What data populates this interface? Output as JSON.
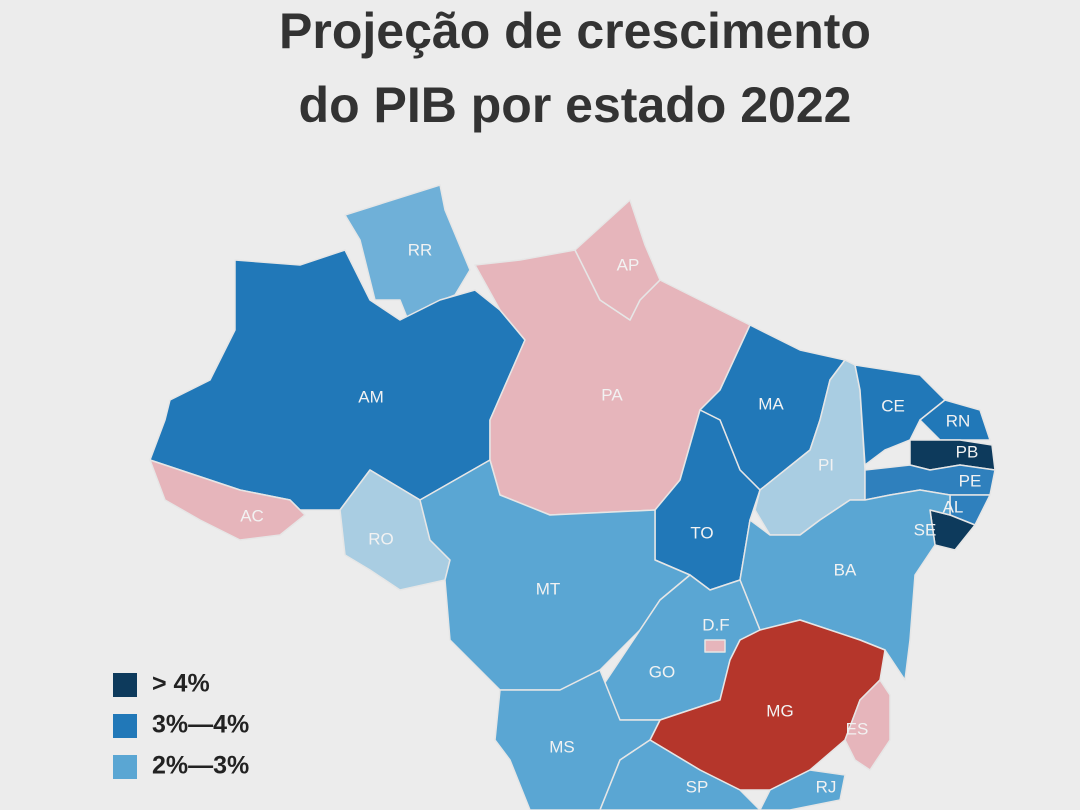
{
  "header": {
    "title_lines": [
      "Projeção de crescimento",
      "do PIB por estado 2022"
    ]
  },
  "states": [
    {
      "label": "RR",
      "color": "#6fb0d8"
    },
    {
      "label": "AM",
      "color": "#2178b8"
    },
    {
      "label": "AC",
      "color": "#e6b5bb"
    },
    {
      "label": "RO",
      "color": "#a9cde2"
    },
    {
      "label": "PA",
      "color": "#e6b5bb"
    },
    {
      "label": "AP",
      "color": "#e6b5bb"
    },
    {
      "label": "MA",
      "color": "#2178b8"
    },
    {
      "label": "TO",
      "color": "#2178b8"
    },
    {
      "label": "PI",
      "color": "#a9cde2"
    },
    {
      "label": "CE",
      "color": "#2178b8"
    },
    {
      "label": "RN",
      "color": "#2178b8"
    },
    {
      "label": "PB",
      "color": "#0d3a5c"
    },
    {
      "label": "PE",
      "color": "#2f80bd"
    },
    {
      "label": "AL",
      "color": "#2f80bd"
    },
    {
      "label": "SE",
      "color": "#0d3a5c"
    },
    {
      "label": "BA",
      "color": "#5aa6d3"
    },
    {
      "label": "MT",
      "color": "#5aa6d3"
    },
    {
      "label": "GO",
      "color": "#5aa6d3"
    },
    {
      "label": "D.F",
      "color": "#e6b5bb"
    },
    {
      "label": "MG",
      "color": "#b5362b"
    },
    {
      "label": "ES",
      "color": "#e6b5bb"
    },
    {
      "label": "MS",
      "color": "#5aa6d3"
    },
    {
      "label": "SP",
      "color": "#5aa6d3"
    },
    {
      "label": "RJ",
      "color": "#5aa6d3"
    }
  ],
  "legend": [
    {
      "label": "> 4%",
      "color": "#0d3a5c"
    },
    {
      "label": "3%—4%",
      "color": "#2178b8"
    },
    {
      "label": "2%—3%",
      "color": "#5aa6d3"
    }
  ]
}
